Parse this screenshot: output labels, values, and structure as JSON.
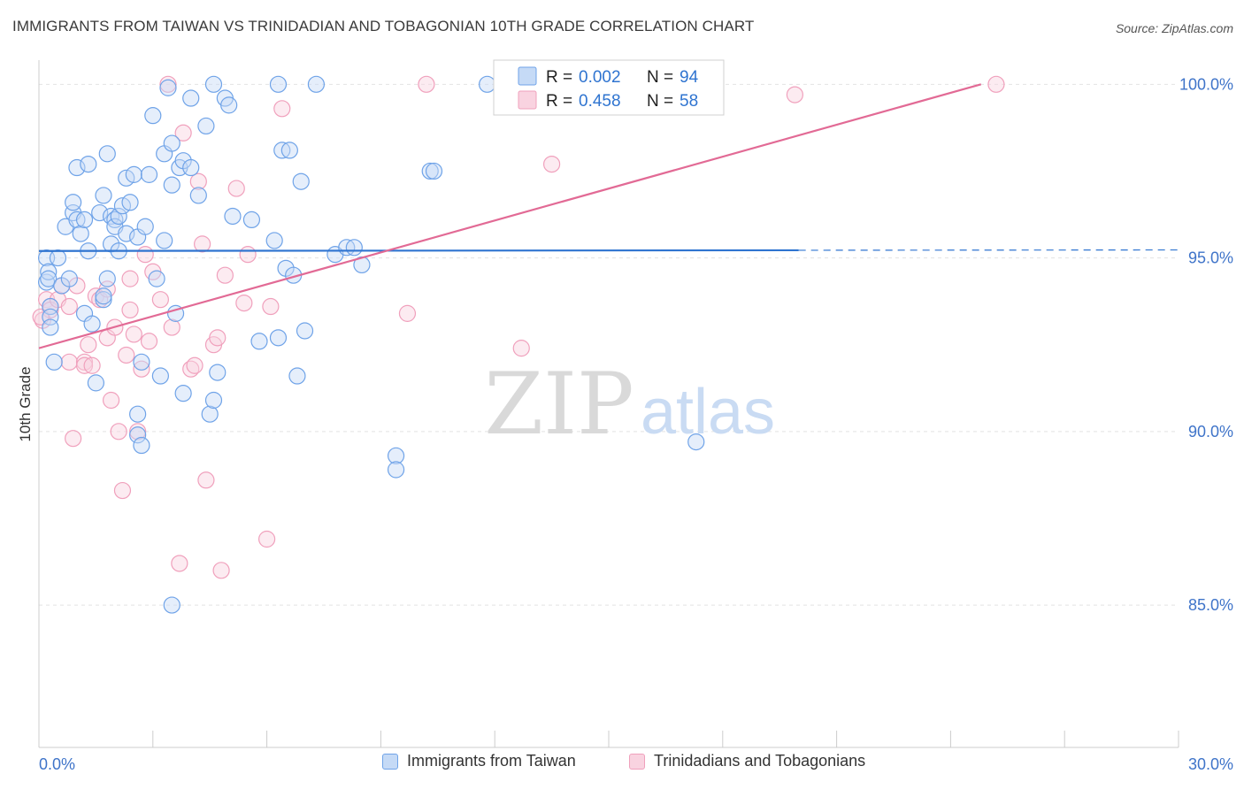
{
  "title": "IMMIGRANTS FROM TAIWAN VS TRINIDADIAN AND TOBAGONIAN 10TH GRADE CORRELATION CHART",
  "source": "Source: ZipAtlas.com",
  "watermark": {
    "zip": "ZIP",
    "atlas": "atlas"
  },
  "colors": {
    "blue": "#6fa3e8",
    "blue_fill": "#c5daf6",
    "blue_line": "#2f74d0",
    "pink": "#f0a0bc",
    "pink_fill": "#f9d3e0",
    "pink_line": "#e26a95",
    "axis_text": "#3f74c9"
  },
  "legend_box": {
    "rows": [
      {
        "r_label": "R =",
        "r_value": "0.002",
        "n_label": "N =",
        "n_value": "94"
      },
      {
        "r_label": "R =",
        "r_value": "0.458",
        "n_label": "N =",
        "n_value": "58"
      }
    ]
  },
  "bottom_legend": {
    "series1": "Immigrants from Taiwan",
    "series2": "Trinidadians and Tobagonians"
  },
  "chart_data": {
    "type": "scatter",
    "ylabel": "10th Grade",
    "xlim": [
      0,
      30
    ],
    "ylim": [
      80.9,
      100.9
    ],
    "x_tick_labels": [
      "0.0%",
      "30.0%"
    ],
    "y_ticks": [
      85,
      90,
      95,
      100
    ],
    "y_tick_labels": [
      "85.0%",
      "90.0%",
      "95.0%",
      "100.0%"
    ],
    "grid": true,
    "series": [
      {
        "name": "Immigrants from Taiwan",
        "trend": {
          "x": [
            0.0,
            20.0
          ],
          "y": [
            95.2,
            95.22
          ],
          "dashed_to_x": 30.0
        },
        "points": [
          [
            0.2,
            95.0
          ],
          [
            0.2,
            94.3
          ],
          [
            0.25,
            94.6
          ],
          [
            0.25,
            94.4
          ],
          [
            0.3,
            93.6
          ],
          [
            0.3,
            93.3
          ],
          [
            0.3,
            93.0
          ],
          [
            0.4,
            92.0
          ],
          [
            0.5,
            95.0
          ],
          [
            0.6,
            94.2
          ],
          [
            0.7,
            95.9
          ],
          [
            0.8,
            94.4
          ],
          [
            0.9,
            96.3
          ],
          [
            0.9,
            96.6
          ],
          [
            1.0,
            96.1
          ],
          [
            1.0,
            97.6
          ],
          [
            1.1,
            95.7
          ],
          [
            1.2,
            96.1
          ],
          [
            1.2,
            93.4
          ],
          [
            1.3,
            95.2
          ],
          [
            1.3,
            97.7
          ],
          [
            1.4,
            93.1
          ],
          [
            1.5,
            91.4
          ],
          [
            1.6,
            96.3
          ],
          [
            1.7,
            96.8
          ],
          [
            1.7,
            93.8
          ],
          [
            1.7,
            93.9
          ],
          [
            1.8,
            98.0
          ],
          [
            1.8,
            94.4
          ],
          [
            1.9,
            96.2
          ],
          [
            1.9,
            95.4
          ],
          [
            2.0,
            96.1
          ],
          [
            2.0,
            95.9
          ],
          [
            2.1,
            95.2
          ],
          [
            2.1,
            96.2
          ],
          [
            2.2,
            96.5
          ],
          [
            2.3,
            97.3
          ],
          [
            2.3,
            95.7
          ],
          [
            2.4,
            96.6
          ],
          [
            2.5,
            97.4
          ],
          [
            2.6,
            90.5
          ],
          [
            2.6,
            89.9
          ],
          [
            2.6,
            95.6
          ],
          [
            2.7,
            92.0
          ],
          [
            2.7,
            89.6
          ],
          [
            2.8,
            95.9
          ],
          [
            2.9,
            97.4
          ],
          [
            3.0,
            99.1
          ],
          [
            3.1,
            94.4
          ],
          [
            3.2,
            91.6
          ],
          [
            3.3,
            98.0
          ],
          [
            3.3,
            95.5
          ],
          [
            3.4,
            99.9
          ],
          [
            3.5,
            98.3
          ],
          [
            3.5,
            97.1
          ],
          [
            3.5,
            85.0
          ],
          [
            3.6,
            93.4
          ],
          [
            3.7,
            97.6
          ],
          [
            3.8,
            97.8
          ],
          [
            3.8,
            91.1
          ],
          [
            4.0,
            99.6
          ],
          [
            4.0,
            97.6
          ],
          [
            4.2,
            96.8
          ],
          [
            4.4,
            98.8
          ],
          [
            4.5,
            90.5
          ],
          [
            4.6,
            90.9
          ],
          [
            4.6,
            100.0
          ],
          [
            4.7,
            91.7
          ],
          [
            4.9,
            99.6
          ],
          [
            5.0,
            99.4
          ],
          [
            5.1,
            96.2
          ],
          [
            5.6,
            96.1
          ],
          [
            5.8,
            92.6
          ],
          [
            6.2,
            95.5
          ],
          [
            6.3,
            92.7
          ],
          [
            6.3,
            100.0
          ],
          [
            6.4,
            98.1
          ],
          [
            6.6,
            98.1
          ],
          [
            6.5,
            94.7
          ],
          [
            6.7,
            94.5
          ],
          [
            6.8,
            91.6
          ],
          [
            6.9,
            97.2
          ],
          [
            7.0,
            92.9
          ],
          [
            7.3,
            100.0
          ],
          [
            7.8,
            95.1
          ],
          [
            8.1,
            95.3
          ],
          [
            8.3,
            95.3
          ],
          [
            8.5,
            94.8
          ],
          [
            9.4,
            89.3
          ],
          [
            9.4,
            88.9
          ],
          [
            10.3,
            97.5
          ],
          [
            10.4,
            97.5
          ],
          [
            11.8,
            100.0
          ],
          [
            17.3,
            89.7
          ]
        ]
      },
      {
        "name": "Trinidadians and Tobagonians",
        "trend": {
          "x": [
            0.0,
            24.8
          ],
          "y": [
            92.4,
            100.0
          ]
        },
        "points": [
          [
            0.1,
            93.2
          ],
          [
            0.2,
            93.8
          ],
          [
            0.3,
            93.6
          ],
          [
            0.3,
            93.5
          ],
          [
            0.5,
            93.8
          ],
          [
            0.6,
            94.2
          ],
          [
            0.8,
            93.6
          ],
          [
            0.8,
            92.0
          ],
          [
            0.9,
            89.8
          ],
          [
            1.0,
            94.2
          ],
          [
            1.2,
            92.0
          ],
          [
            1.2,
            91.9
          ],
          [
            1.3,
            92.5
          ],
          [
            1.4,
            91.9
          ],
          [
            1.5,
            93.9
          ],
          [
            1.6,
            93.8
          ],
          [
            1.8,
            94.1
          ],
          [
            1.8,
            92.7
          ],
          [
            1.9,
            90.9
          ],
          [
            2.0,
            93.0
          ],
          [
            2.1,
            90.0
          ],
          [
            2.2,
            88.3
          ],
          [
            2.3,
            92.2
          ],
          [
            2.4,
            93.5
          ],
          [
            2.4,
            94.4
          ],
          [
            2.5,
            92.8
          ],
          [
            2.6,
            90.0
          ],
          [
            2.7,
            91.8
          ],
          [
            2.8,
            95.1
          ],
          [
            2.9,
            92.6
          ],
          [
            3.0,
            94.6
          ],
          [
            3.2,
            93.8
          ],
          [
            3.4,
            100.0
          ],
          [
            3.5,
            93.0
          ],
          [
            3.7,
            86.2
          ],
          [
            3.8,
            98.6
          ],
          [
            4.0,
            91.8
          ],
          [
            4.1,
            91.9
          ],
          [
            4.2,
            97.2
          ],
          [
            4.3,
            95.4
          ],
          [
            4.4,
            88.6
          ],
          [
            4.6,
            92.5
          ],
          [
            4.7,
            92.7
          ],
          [
            4.8,
            86.0
          ],
          [
            4.9,
            94.5
          ],
          [
            5.2,
            97.0
          ],
          [
            5.4,
            93.7
          ],
          [
            5.5,
            95.1
          ],
          [
            6.0,
            86.9
          ],
          [
            6.1,
            93.6
          ],
          [
            6.4,
            99.3
          ],
          [
            9.7,
            93.4
          ],
          [
            10.2,
            100.0
          ],
          [
            12.7,
            92.4
          ],
          [
            13.5,
            97.7
          ],
          [
            19.9,
            99.7
          ],
          [
            25.2,
            100.0
          ],
          [
            0.05,
            93.3
          ]
        ]
      }
    ]
  }
}
